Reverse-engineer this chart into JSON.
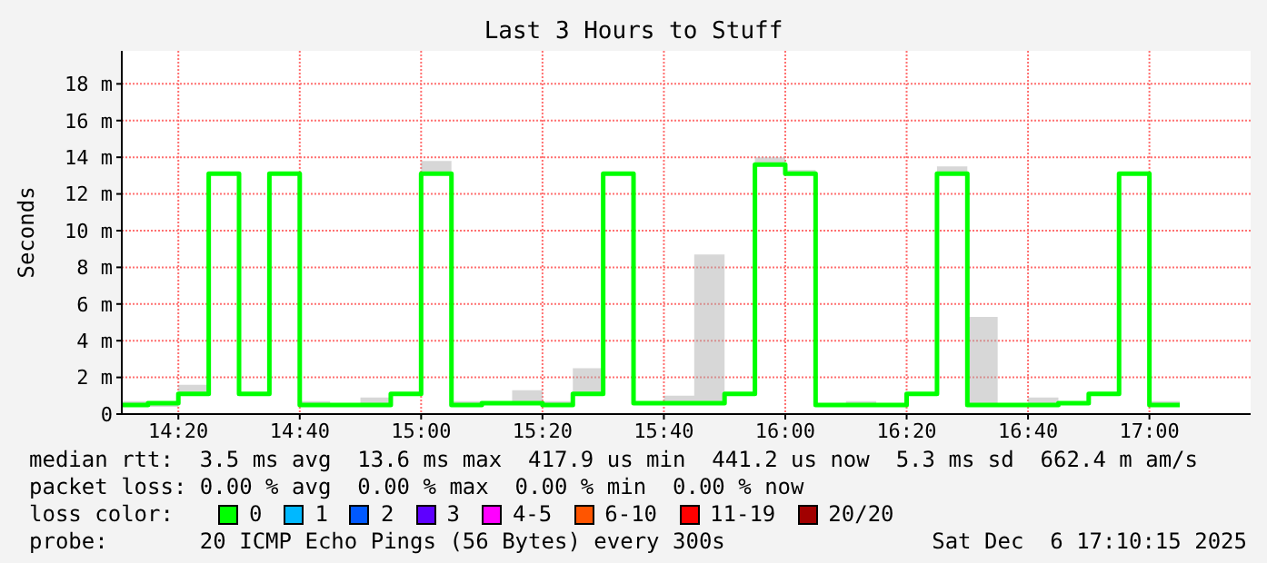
{
  "chart_data": {
    "type": "step",
    "title": "Last 3 Hours to Stuff",
    "ylabel": "Seconds",
    "x": [
      14.178,
      14.25,
      14.3333,
      14.4167,
      14.5,
      14.5833,
      14.6667,
      14.75,
      14.8333,
      14.9167,
      15,
      15.0833,
      15.1667,
      15.25,
      15.3333,
      15.4167,
      15.5,
      15.5833,
      15.6667,
      15.75,
      15.8333,
      15.9167,
      16,
      16.0833,
      16.1667,
      16.25,
      16.3333,
      16.4167,
      16.5,
      16.5833,
      16.6667,
      16.75,
      16.8333,
      16.9167,
      17,
      17.0833
    ],
    "xlim": [
      14.178,
      17.278
    ],
    "xticks": [
      {
        "value": 14.3333,
        "label": "14:20"
      },
      {
        "value": 14.6667,
        "label": "14:40"
      },
      {
        "value": 15,
        "label": "15:00"
      },
      {
        "value": 15.3333,
        "label": "15:20"
      },
      {
        "value": 15.6667,
        "label": "15:40"
      },
      {
        "value": 16,
        "label": "16:00"
      },
      {
        "value": 16.3333,
        "label": "16:20"
      },
      {
        "value": 16.6667,
        "label": "16:40"
      },
      {
        "value": 17,
        "label": "17:00"
      }
    ],
    "ylim": [
      0,
      19.8
    ],
    "yticks": [
      0,
      {
        "value": 2,
        "label": "2 m"
      },
      {
        "value": 4,
        "label": "4 m"
      },
      {
        "value": 6,
        "label": "6 m"
      },
      {
        "value": 8,
        "label": "8 m"
      },
      {
        "value": 10,
        "label": "10 m"
      },
      {
        "value": 12,
        "label": "12 m"
      },
      {
        "value": 14,
        "label": "14 m"
      },
      {
        "value": 16,
        "label": "16 m"
      },
      {
        "value": 18,
        "label": "18 m"
      }
    ],
    "grid": true,
    "legend": "bottom",
    "legend_title": "loss color:",
    "series": [
      {
        "name": "0",
        "color": "#00ff00",
        "values": [
          0.5,
          0.6,
          1.1,
          13.1,
          1.1,
          13.1,
          0.5,
          0.5,
          0.5,
          1.1,
          13.1,
          0.5,
          0.6,
          0.6,
          0.5,
          1.1,
          13.1,
          0.6,
          0.6,
          0.6,
          1.1,
          13.6,
          13.1,
          0.5,
          0.5,
          0.5,
          1.1,
          13.1,
          0.5,
          0.5,
          0.5,
          0.6,
          1.1,
          13.1,
          0.5,
          0.5
        ],
        "lower": [
          0.4,
          0.4,
          1.0,
          13.1,
          1.0,
          13.1,
          0.4,
          0.4,
          0.4,
          1.0,
          13.1,
          0.4,
          0.5,
          0.5,
          0.4,
          1.0,
          13.1,
          0.5,
          0.5,
          0.5,
          1.0,
          13.5,
          13.1,
          0.4,
          0.4,
          0.4,
          1.0,
          13.1,
          0.4,
          0.4,
          0.4,
          0.5,
          1.0,
          13.1,
          0.4,
          0.4
        ],
        "upper": [
          0.7,
          0.6,
          1.6,
          13.1,
          1.1,
          13.1,
          0.7,
          0.6,
          0.9,
          1.1,
          13.8,
          0.7,
          0.6,
          1.3,
          0.7,
          2.5,
          13.1,
          0.6,
          1.0,
          8.7,
          1.1,
          14.0,
          13.3,
          0.5,
          0.7,
          0.6,
          1.1,
          13.5,
          5.3,
          0.6,
          0.9,
          0.6,
          1.2,
          13.1,
          0.7,
          0.7
        ]
      },
      {
        "name": "1",
        "color": "#00b8ff",
        "values": [
          null,
          null,
          null,
          null,
          null,
          null,
          null,
          null,
          null,
          null,
          null,
          null,
          null,
          null,
          null,
          null,
          null,
          null,
          null,
          null,
          null,
          null,
          null,
          null,
          null,
          null,
          null,
          null,
          null,
          null,
          null,
          null,
          null,
          null,
          null,
          null
        ]
      },
      {
        "name": "2",
        "color": "#0059ff",
        "values": [
          null,
          null,
          null,
          null,
          null,
          null,
          null,
          null,
          null,
          null,
          null,
          null,
          null,
          null,
          null,
          null,
          null,
          null,
          null,
          null,
          null,
          null,
          null,
          null,
          null,
          null,
          null,
          null,
          null,
          null,
          null,
          null,
          null,
          null,
          null,
          null
        ]
      },
      {
        "name": "3",
        "color": "#5e00ff",
        "values": [
          null,
          null,
          null,
          null,
          null,
          null,
          null,
          null,
          null,
          null,
          null,
          null,
          null,
          null,
          null,
          null,
          null,
          null,
          null,
          null,
          null,
          null,
          null,
          null,
          null,
          null,
          null,
          null,
          null,
          null,
          null,
          null,
          null,
          null,
          null,
          null
        ]
      },
      {
        "name": "4-5",
        "color": "#ff00ff",
        "values": [
          null,
          null,
          null,
          null,
          null,
          null,
          null,
          null,
          null,
          null,
          null,
          null,
          null,
          null,
          null,
          null,
          null,
          null,
          null,
          null,
          null,
          null,
          null,
          null,
          null,
          null,
          null,
          null,
          null,
          null,
          null,
          null,
          null,
          null,
          null,
          null
        ]
      },
      {
        "name": "6-10",
        "color": "#ff5500",
        "values": [
          null,
          null,
          null,
          null,
          null,
          null,
          null,
          null,
          null,
          null,
          null,
          null,
          null,
          null,
          null,
          null,
          null,
          null,
          null,
          null,
          null,
          null,
          null,
          null,
          null,
          null,
          null,
          null,
          null,
          null,
          null,
          null,
          null,
          null,
          null,
          null
        ]
      },
      {
        "name": "11-19",
        "color": "#ff0000",
        "values": [
          null,
          null,
          null,
          null,
          null,
          null,
          null,
          null,
          null,
          null,
          null,
          null,
          null,
          null,
          null,
          null,
          null,
          null,
          null,
          null,
          null,
          null,
          null,
          null,
          null,
          null,
          null,
          null,
          null,
          null,
          null,
          null,
          null,
          null,
          null,
          null
        ]
      },
      {
        "name": "20/20",
        "color": "#a10000",
        "values": [
          null,
          null,
          null,
          null,
          null,
          null,
          null,
          null,
          null,
          null,
          null,
          null,
          null,
          null,
          null,
          null,
          null,
          null,
          null,
          null,
          null,
          null,
          null,
          null,
          null,
          null,
          null,
          null,
          null,
          null,
          null,
          null,
          null,
          null,
          null,
          null
        ]
      }
    ],
    "annotations": [
      "median rtt:  3.5 ms avg  13.6 ms max  417.9 us min  441.2 us now  5.3 ms sd  662.4 m am/s",
      "packet loss: 0.00 % avg  0.00 % max  0.00 % min  0.00 % now",
      "probe:       20 ICMP Echo Pings (56 Bytes) every 300s",
      "Sat Dec  6 17:10:15 2025"
    ]
  }
}
